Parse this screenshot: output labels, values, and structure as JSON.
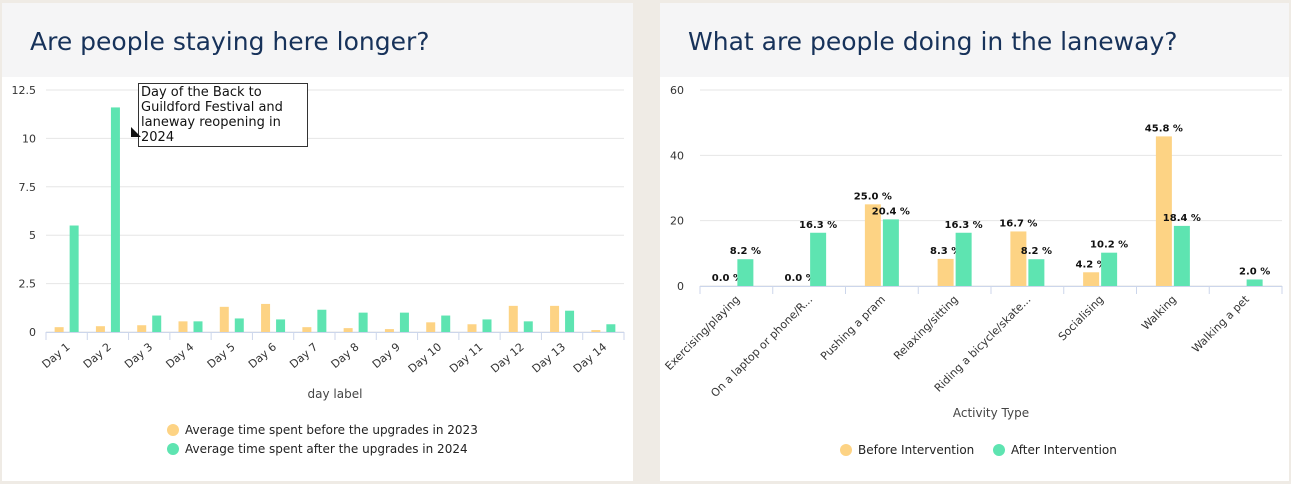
{
  "left": {
    "title": "Are people staying here longer?",
    "annotation": "Day of the Back to Guildford Festival and laneway reopening in 2024"
  },
  "right": {
    "title": "What are people doing in the laneway?"
  },
  "colors": {
    "before": "#fdd384",
    "after": "#5ee4b1",
    "grid": "#e6e6e6",
    "axis": "#ccd6eb"
  },
  "chart_data": [
    {
      "type": "bar",
      "title": "Are people staying here longer?",
      "xlabel": "day label",
      "ylabel": "",
      "ylim": [
        0,
        12.5
      ],
      "yticks": [
        "0",
        "2.5",
        "5",
        "7.5",
        "10",
        "12.5"
      ],
      "categories": [
        "Day 1",
        "Day 2",
        "Day 3",
        "Day 4",
        "Day 5",
        "Day 6",
        "Day 7",
        "Day 8",
        "Day 9",
        "Day 10",
        "Day 11",
        "Day 12",
        "Day 13",
        "Day 14"
      ],
      "series": [
        {
          "name": "Average time spent before the upgrades in 2023",
          "values": [
            0.25,
            0.3,
            0.35,
            0.55,
            1.3,
            1.45,
            0.25,
            0.2,
            0.15,
            0.5,
            0.4,
            1.35,
            1.35,
            0.1
          ]
        },
        {
          "name": "Average time spent after the upgrades in 2024",
          "values": [
            5.5,
            11.6,
            0.85,
            0.55,
            0.7,
            0.65,
            1.15,
            1.0,
            1.0,
            0.85,
            0.65,
            0.55,
            1.1,
            0.4
          ]
        }
      ],
      "legend": "bottom-center",
      "grid": true
    },
    {
      "type": "bar",
      "title": "What are people doing in the laneway?",
      "xlabel": "Activity Type",
      "ylabel": "",
      "ylim": [
        0,
        60
      ],
      "yticks": [
        "0",
        "20",
        "40",
        "60"
      ],
      "categories": [
        "Exercising/playing",
        "On a laptop or phone/R...",
        "Pushing a pram",
        "Relaxing/sitting",
        "Riding a bicycle/skate...",
        "Socialising",
        "Walking",
        "Walking a pet"
      ],
      "series": [
        {
          "name": "Before Intervention",
          "values": [
            0.0,
            0.0,
            25.0,
            8.3,
            16.7,
            4.2,
            45.8,
            null
          ],
          "labels": [
            "0.0 %",
            "0.0 %",
            "25.0 %",
            "8.3 %",
            "16.7 %",
            "4.2 %",
            "45.8 %",
            ""
          ]
        },
        {
          "name": "After Intervention",
          "values": [
            8.2,
            16.3,
            20.4,
            16.3,
            8.2,
            10.2,
            18.4,
            2.0
          ],
          "labels": [
            "8.2 %",
            "16.3 %",
            "20.4 %",
            "16.3 %",
            "8.2 %",
            "10.2 %",
            "18.4 %",
            "2.0 %"
          ]
        }
      ],
      "legend": "bottom-center",
      "grid": true
    }
  ]
}
